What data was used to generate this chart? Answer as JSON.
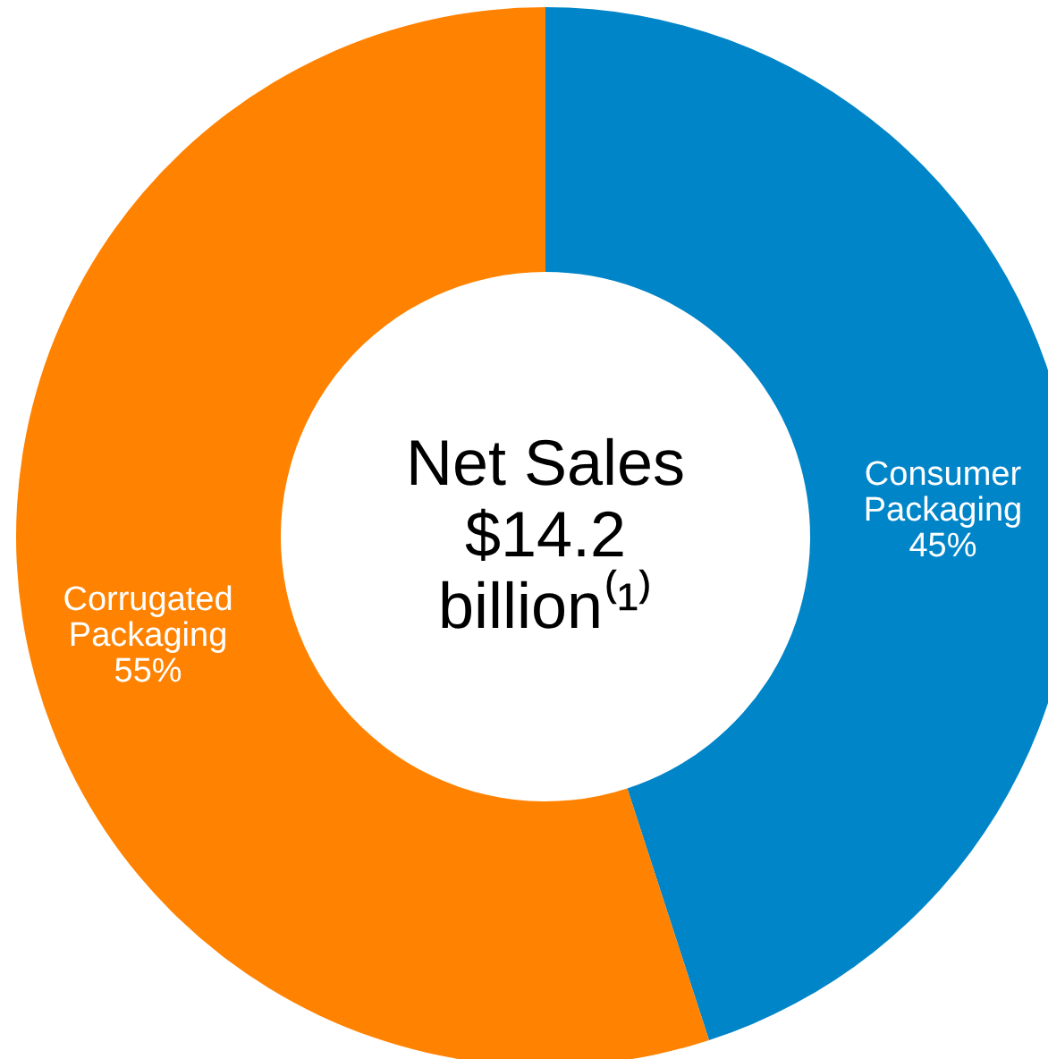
{
  "chart_data": {
    "type": "donut",
    "title": "Net Sales",
    "annotations": [
      "$14.2",
      "billion⁽¹⁾"
    ],
    "categories": [
      "Consumer Packaging",
      "Corrugated Packaging"
    ],
    "values": [
      45,
      55
    ],
    "value_labels": [
      "45%",
      "55%"
    ],
    "colors": [
      "#0085c8",
      "#ff8200"
    ]
  }
}
